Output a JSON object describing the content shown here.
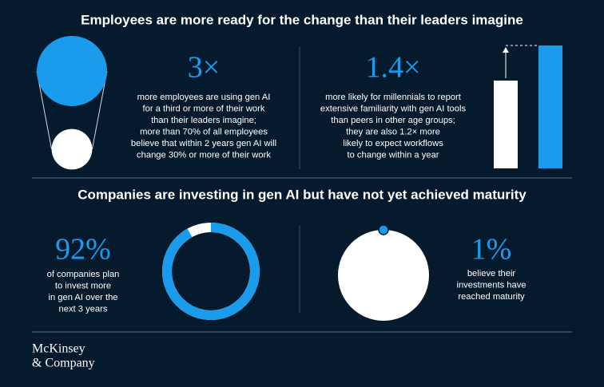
{
  "header": {
    "title": "Employees are more ready for the change than their leaders imagine"
  },
  "stats": [
    {
      "value": 3,
      "label": "3×",
      "lines": [
        "more employees are using gen AI",
        "for a third or more of their work",
        "than their leaders imagine;",
        "more than 70% of all employees",
        "believe that within 2 years gen AI will",
        "change 30% or more of their work"
      ]
    },
    {
      "value": 1.4,
      "label": "1.4×",
      "lines": [
        "more likely for millennials to report",
        "extensive familiarity with gen AI tools",
        "than peers in other age groups;",
        "they are also 1.2× more",
        "likely to expect workflows",
        "to change within a year"
      ]
    },
    {
      "value": 92,
      "label": "92%",
      "lines": [
        "of companies plan",
        "to invest more",
        "in gen AI over the",
        "next 3 years"
      ]
    },
    {
      "value": 1,
      "label": "1%",
      "lines": [
        "believe their",
        "investments have",
        "reached maturity"
      ]
    }
  ],
  "section2": {
    "title": "Companies are investing in gen AI but have not yet achieved maturity"
  },
  "footer": {
    "logo": [
      "McKinsey",
      "& Company"
    ]
  }
}
